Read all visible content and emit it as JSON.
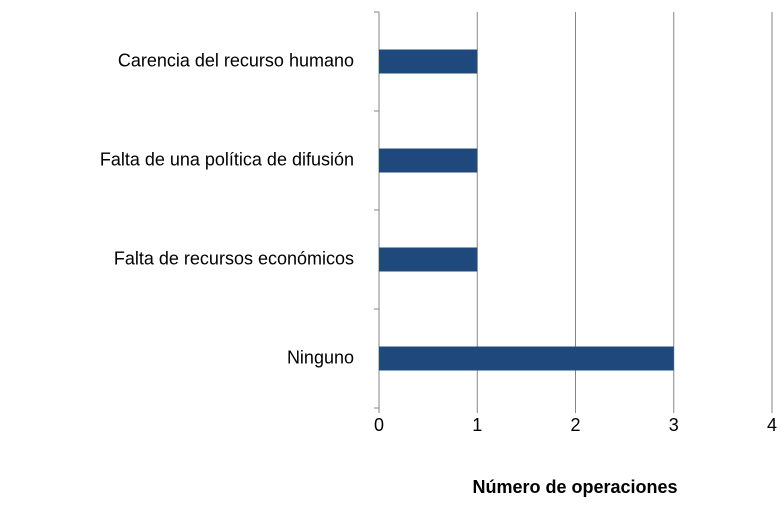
{
  "chart_data": {
    "type": "barh",
    "categories": [
      "Carencia del recurso humano",
      "Falta de una política de difusión",
      "Falta de recursos económicos",
      "Ninguno"
    ],
    "values": [
      1,
      1,
      1,
      3
    ],
    "color": "#1f497d",
    "xlabel": "Número de operaciones",
    "xlim": [
      0,
      4
    ],
    "xticks": [
      0,
      1,
      2,
      3,
      4
    ],
    "grid": true
  }
}
